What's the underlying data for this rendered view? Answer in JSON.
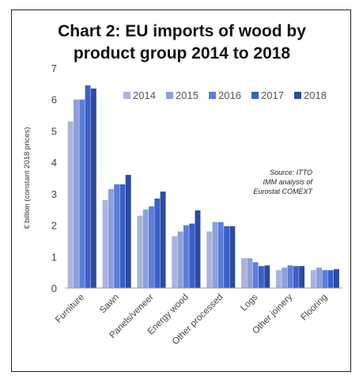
{
  "chart_data": {
    "type": "bar",
    "title_lines": [
      "Chart 2: EU imports of wood by",
      "product group 2014 to 2018"
    ],
    "ylabel": "€ billion (constant 2018 prices)",
    "xlabel": "",
    "ylim": [
      0,
      7
    ],
    "yticks": [
      "0",
      "1",
      "2",
      "3",
      "4",
      "5",
      "6",
      "7"
    ],
    "grid": false,
    "legend_position": "top-right",
    "annotation_lines": [
      "Source: ITTO",
      "IMM analysis of",
      "Eurostat COMEXT"
    ],
    "categories": [
      "Furniture",
      "Sawn",
      "Panels/veneer",
      "Energy wood",
      "Other processed",
      "Logs",
      "Other joinery",
      "Flooring"
    ],
    "series": [
      {
        "name": "2014",
        "color": "#aab4dc",
        "values": [
          5.3,
          2.8,
          2.3,
          1.65,
          1.8,
          0.95,
          0.57,
          0.57
        ]
      },
      {
        "name": "2015",
        "color": "#8d9fdc",
        "values": [
          6.0,
          3.15,
          2.5,
          1.8,
          2.1,
          0.95,
          0.65,
          0.65
        ]
      },
      {
        "name": "2016",
        "color": "#5b7ed8",
        "values": [
          6.0,
          3.3,
          2.6,
          2.0,
          2.1,
          0.82,
          0.72,
          0.57
        ]
      },
      {
        "name": "2017",
        "color": "#3a60c8",
        "values": [
          6.45,
          3.3,
          2.85,
          2.05,
          1.97,
          0.7,
          0.7,
          0.57
        ]
      },
      {
        "name": "2018",
        "color": "#2c4aa0",
        "values": [
          6.35,
          3.6,
          3.07,
          2.47,
          1.97,
          0.72,
          0.7,
          0.6
        ]
      }
    ]
  }
}
